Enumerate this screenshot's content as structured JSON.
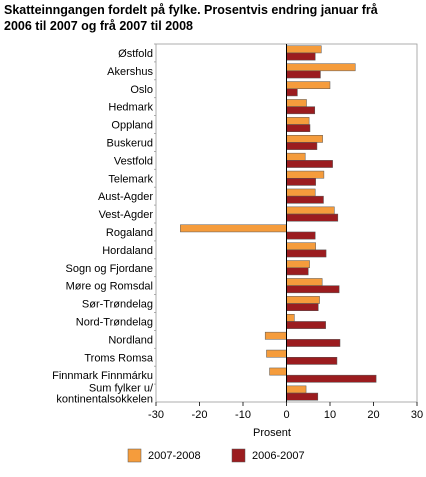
{
  "title_line1": "Skatteinngangen fordelt på fylke. Prosentvis endring januar frå",
  "title_line2": "2006 til 2007 og frå 2007 til 2008",
  "chart_data": {
    "type": "bar",
    "orientation": "horizontal",
    "title": "Skatteinngangen fordelt på fylke. Prosentvis endring januar frå 2006 til 2007 og frå 2007 til 2008",
    "xlabel": "Prosent",
    "ylabel": "",
    "xlim": [
      -30,
      30
    ],
    "xticks": [
      -30,
      -20,
      -10,
      0,
      10,
      20,
      30
    ],
    "grid": false,
    "legend_position": "bottom",
    "categories": [
      [
        "Østfold"
      ],
      [
        "Akershus"
      ],
      [
        "Oslo"
      ],
      [
        "Hedmark"
      ],
      [
        "Oppland"
      ],
      [
        "Buskerud"
      ],
      [
        "Vestfold"
      ],
      [
        "Telemark"
      ],
      [
        "Aust-Agder"
      ],
      [
        "Vest-Agder"
      ],
      [
        "Rogaland"
      ],
      [
        "Hordaland"
      ],
      [
        "Sogn og Fjordane"
      ],
      [
        "Møre og Romsdal"
      ],
      [
        "Sør-Trøndelag"
      ],
      [
        "Nord-Trøndelag"
      ],
      [
        "Nordland"
      ],
      [
        "Troms Romsa"
      ],
      [
        "Finnmark Finnmárku"
      ],
      [
        "Sum fylker u/",
        "kontinentalsokkelen"
      ]
    ],
    "series": [
      {
        "name": "2007-2008",
        "color": "#f59c3c",
        "values": [
          8.0,
          15.8,
          10.0,
          4.6,
          5.2,
          8.3,
          4.3,
          8.6,
          6.6,
          11.0,
          -24.4,
          6.7,
          5.3,
          8.2,
          7.6,
          1.8,
          -4.9,
          -4.6,
          -3.9,
          4.5
        ]
      },
      {
        "name": "2006-2007",
        "color": "#9b1c1f",
        "values": [
          6.6,
          7.8,
          2.5,
          6.5,
          5.4,
          7.0,
          10.6,
          6.7,
          8.5,
          11.8,
          6.6,
          9.1,
          5.0,
          12.1,
          7.3,
          9.0,
          12.3,
          11.6,
          20.6,
          7.2
        ]
      }
    ]
  },
  "colors": {
    "axis": "#000000",
    "plot_border": "#999999",
    "bar_outline": "#555555"
  }
}
